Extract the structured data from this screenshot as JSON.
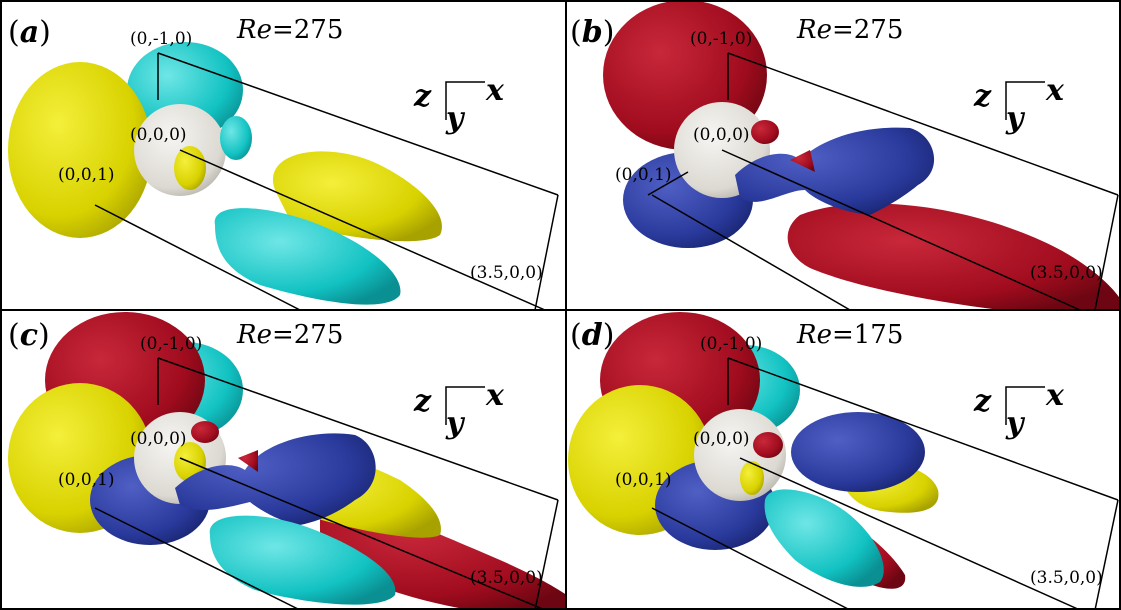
{
  "panels": [
    {
      "letter": "a",
      "re_prefix": "Re",
      "re_value": "=275",
      "coords": {
        "top": "(0,-1,0)",
        "origin": "(0,0,0)",
        "side": "(0,0,1)",
        "end": "(3.5,0,0)"
      },
      "axes": {
        "z": "z",
        "y": "y",
        "x": "x"
      }
    },
    {
      "letter": "b",
      "re_prefix": "Re",
      "re_value": "=275",
      "coords": {
        "top": "(0,-1,0)",
        "origin": "(0,0,0)",
        "side": "(0,0,1)",
        "end": "(3.5,0,0)"
      },
      "axes": {
        "z": "z",
        "y": "y",
        "x": "x"
      }
    },
    {
      "letter": "c",
      "re_prefix": "Re",
      "re_value": "=275",
      "coords": {
        "top": "(0,-1,0)",
        "origin": "(0,0,0)",
        "side": "(0,0,1)",
        "end": "(3.5,0,0)"
      },
      "axes": {
        "z": "z",
        "y": "y",
        "x": "x"
      }
    },
    {
      "letter": "d",
      "re_prefix": "Re",
      "re_value": "=175",
      "coords": {
        "top": "(0,-1,0)",
        "origin": "(0,0,0)",
        "side": "(0,0,1)",
        "end": "(3.5,0,0)"
      },
      "axes": {
        "z": "z",
        "y": "y",
        "x": "x"
      }
    }
  ],
  "colors": {
    "yellow": "#e6e000",
    "cyan": "#19cfcf",
    "red": "#a80d20",
    "blue": "#2a3aa0",
    "sphere": "#e8e6e0",
    "border": "#000000"
  }
}
